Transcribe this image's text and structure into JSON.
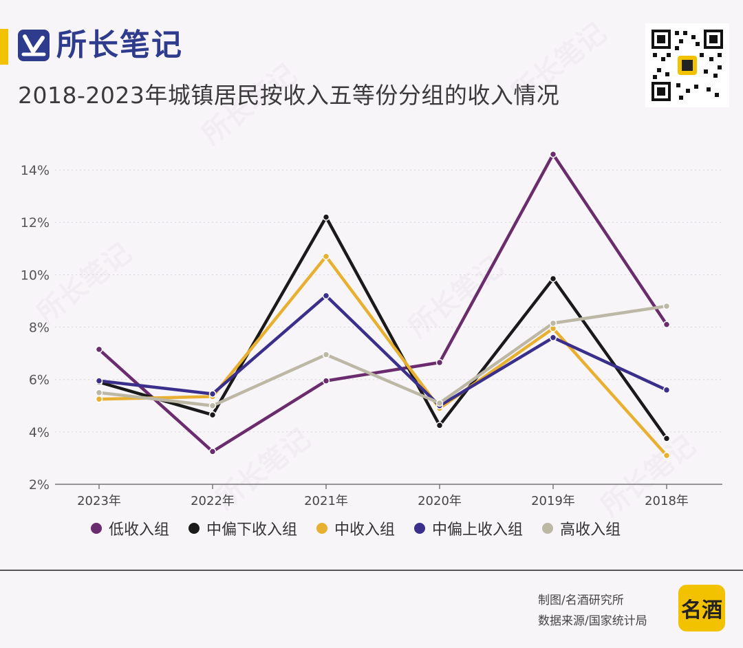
{
  "brand": {
    "name": "所长笔记"
  },
  "title": "2018-2023年城镇居民按收入五等份分组的收入情况",
  "watermark_text": "所长笔记",
  "colors": {
    "brand_blue": "#2f3b8c",
    "accent_yellow": "#f2c200",
    "background": "#f8f5f9"
  },
  "footer": {
    "credit_maker": "制图/名酒研究所",
    "credit_source": "数据来源/国家统计局",
    "logo_text": "名酒"
  },
  "chart_data": {
    "type": "line",
    "categories": [
      "2023年",
      "2022年",
      "2021年",
      "2020年",
      "2019年",
      "2018年"
    ],
    "ylim": [
      2,
      15
    ],
    "yticks": [
      2,
      4,
      6,
      8,
      10,
      12,
      14
    ],
    "ytick_labels": [
      "2%",
      "4%",
      "6%",
      "8%",
      "10%",
      "12%",
      "14%"
    ],
    "grid": true,
    "legend_position": "bottom",
    "series": [
      {
        "name": "低收入组",
        "color": "#6b2c6e",
        "values": [
          7.15,
          3.25,
          5.95,
          6.65,
          14.6,
          8.1
        ]
      },
      {
        "name": "中偏下收入组",
        "color": "#1a1a1a",
        "values": [
          5.9,
          4.65,
          12.2,
          4.25,
          9.85,
          3.75
        ]
      },
      {
        "name": "中收入组",
        "color": "#e8b030",
        "values": [
          5.25,
          5.35,
          10.7,
          4.9,
          7.95,
          3.1
        ]
      },
      {
        "name": "中偏上收入组",
        "color": "#3b2f8c",
        "values": [
          5.95,
          5.45,
          9.2,
          5.0,
          7.6,
          5.6
        ]
      },
      {
        "name": "高收入组",
        "color": "#bdb8a6",
        "values": [
          5.5,
          5.0,
          6.95,
          5.1,
          8.15,
          8.8
        ]
      }
    ]
  }
}
